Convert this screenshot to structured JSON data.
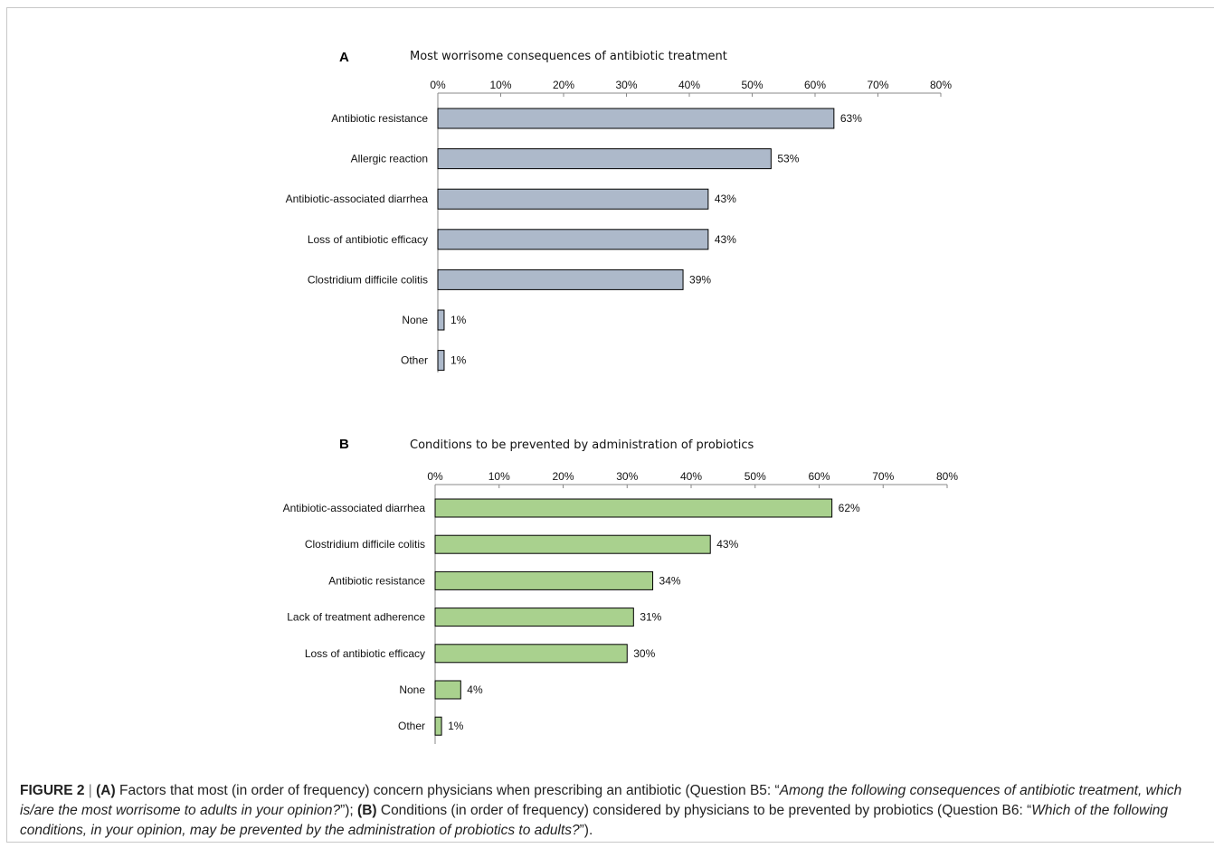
{
  "chart_data": [
    {
      "type": "bar",
      "orientation": "horizontal",
      "panel": "A",
      "title": "Most worrisome consequences of antibiotic treatment",
      "categories": [
        "Antibiotic resistance",
        "Allergic reaction",
        "Antibiotic-associated diarrhea",
        "Loss of antibiotic efficacy",
        "Clostridium difficile colitis",
        "None",
        "Other"
      ],
      "values": [
        63,
        53,
        43,
        43,
        39,
        1,
        1
      ],
      "value_labels": [
        "63%",
        "53%",
        "43%",
        "43%",
        "39%",
        "1%",
        "1%"
      ],
      "xlim": [
        0,
        80
      ],
      "xticks": [
        "0%",
        "10%",
        "20%",
        "30%",
        "40%",
        "50%",
        "60%",
        "70%",
        "80%"
      ],
      "bar_color": "#adb9ca",
      "grid": false
    },
    {
      "type": "bar",
      "orientation": "horizontal",
      "panel": "B",
      "title": "Conditions to be prevented by administration of probiotics",
      "categories": [
        "Antibiotic-associated diarrhea",
        "Clostridium difficile colitis",
        "Antibiotic resistance",
        "Lack of treatment adherence",
        "Loss of antibiotic efficacy",
        "None",
        "Other"
      ],
      "values": [
        62,
        43,
        34,
        31,
        30,
        4,
        1
      ],
      "value_labels": [
        "62%",
        "43%",
        "34%",
        "31%",
        "30%",
        "4%",
        "1%"
      ],
      "xlim": [
        0,
        80
      ],
      "xticks": [
        "0%",
        "10%",
        "20%",
        "30%",
        "40%",
        "50%",
        "60%",
        "70%",
        "80%"
      ],
      "bar_color": "#a9d18e",
      "grid": false
    }
  ],
  "caption": {
    "figure_label": "FIGURE 2",
    "separator": "|",
    "a_label": "(A)",
    "a_text": " Factors that most (in order of frequency) concern physicians when prescribing an antibiotic (Question B5: “",
    "a_quote": "Among the following consequences of antibiotic treatment, which is/are the most worrisome to adults in your opinion?",
    "a_end": "”); ",
    "b_label": "(B)",
    "b_text": " Conditions (in order of frequency) considered by physicians to be prevented by probiotics (Question B6: “",
    "b_quote": "Which of the following conditions, in your opinion, may be prevented by the administration of probiotics to adults?",
    "b_end": "”)."
  }
}
